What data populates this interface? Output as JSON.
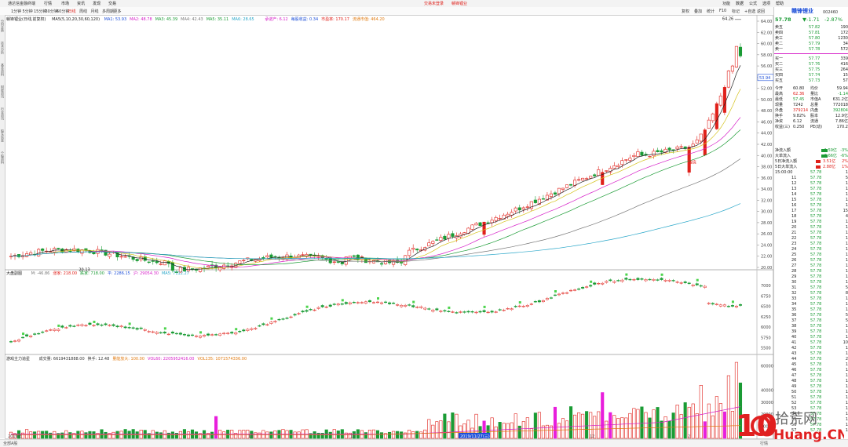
{
  "topbar": {
    "app_title": "通达信金融终端",
    "menus": [
      "行情",
      "市场",
      "资讯",
      "发现",
      "交易"
    ],
    "center_links": [
      "交易未登录",
      "赣锋锂业"
    ],
    "right_menus": [
      "功能",
      "数据",
      "公式",
      "选项",
      "帮助"
    ]
  },
  "toolbar": {
    "periods": [
      "1分钟",
      "5分钟",
      "15分钟",
      "30分钟",
      "60分钟",
      "日线",
      "周线",
      "月线",
      "多周期",
      "更多"
    ],
    "selected_period": "日线",
    "right_buttons": [
      "复权",
      "叠加",
      "统计",
      "F10",
      "标记",
      "+自选",
      "返回"
    ]
  },
  "left_tabs": [
    "分时走势",
    "技术分析",
    "基本资料",
    "财经资讯",
    "行业资讯",
    "股东信息",
    "个股资料"
  ],
  "main_panel": {
    "stock_label": "赣锋锂业(日线,前复权)",
    "ma_label": "MA5(5,10,20,30,60,120)",
    "ma_values": [
      {
        "text": "MA1: 53.93",
        "color": "#1d4fd8"
      },
      {
        "text": "MA2: 48.78",
        "color": "#d61ec8"
      },
      {
        "text": "MA3: 45.39",
        "color": "#1a9b34"
      },
      {
        "text": "MA4: 42.43",
        "color": "#777777"
      },
      {
        "text": "MA5: 35.11",
        "color": "#1a9b34"
      },
      {
        "text": "MA6: 28.65",
        "color": "#2aa7c9"
      }
    ],
    "extra_info": [
      {
        "text": "承诺产: 6.12",
        "color": "#d61ec8"
      },
      {
        "text": "每股收益: 0.34",
        "color": "#1d4fd8"
      },
      {
        "text": "市盈率: 170.17",
        "color": "#e0201a"
      },
      {
        "text": "流通市值: 464.20",
        "color": "#e07a10"
      }
    ],
    "price_axis": [
      "64.00",
      "62.00",
      "60.00",
      "58.00",
      "56.00",
      "54.00",
      "52.00",
      "50.00",
      "48.00",
      "46.00",
      "44.00",
      "42.00",
      "40.00",
      "38.00",
      "36.00",
      "34.00",
      "32.00",
      "30.00",
      "28.00",
      "26.00",
      "24.00",
      "22.00",
      "20.00"
    ],
    "high_label": "64.26",
    "low_label": "20.13",
    "current_price_tag": "53.94",
    "signal_label": "钱烧"
  },
  "middle_panel": {
    "title": "大盘副图",
    "values": [
      {
        "text": "M: -46.86",
        "color": "#777777"
      },
      {
        "text": "涨家: 218.00",
        "color": "#e0201a"
      },
      {
        "text": "跌家: 718.00",
        "color": "#1a9b34"
      },
      {
        "text": "平: 2286.15",
        "color": "#1d4fd8"
      },
      {
        "text": "沪: 29054.30",
        "color": "#d61ec8"
      },
      {
        "text": "MA5: 7112.27",
        "color": "#2aa7c9"
      }
    ],
    "axis": [
      "7000",
      "6750",
      "6500",
      "6250",
      "6000",
      "5750",
      "5500"
    ]
  },
  "volume_panel": {
    "title": "游戏主力追星",
    "values": [
      {
        "text": "成交量: 6619431888.00",
        "color": "#333333"
      },
      {
        "text": "换手: 12.48",
        "color": "#333333"
      },
      {
        "text": "量能放大: 100.00",
        "color": "#e07a10"
      },
      {
        "text": "VOL60: 2205952416.00",
        "color": "#d61ec8"
      },
      {
        "text": "VOL135: 1071574336.00",
        "color": "#e07a10"
      }
    ],
    "axis": [
      "60000",
      "40000",
      "30000",
      "20000",
      "10000"
    ]
  },
  "date_axis": [
    "2019年",
    "10",
    "11",
    "2019/11/27(三)",
    "12",
    "2"
  ],
  "right_panel": {
    "stock_name": "赣锋锂业",
    "stock_code": "002460",
    "price": "57.78",
    "change": "▼-1.71",
    "change_pct": "-2.87%",
    "asks": [
      {
        "label": "卖五",
        "price": "57.82",
        "vol": "190"
      },
      {
        "label": "卖四",
        "price": "57.81",
        "vol": "172"
      },
      {
        "label": "卖三",
        "price": "57.80",
        "vol": "1230"
      },
      {
        "label": "卖二",
        "price": "57.79",
        "vol": "34"
      },
      {
        "label": "卖一",
        "price": "57.78",
        "vol": "572"
      }
    ],
    "bids": [
      {
        "label": "买一",
        "price": "57.77",
        "vol": "339"
      },
      {
        "label": "买二",
        "price": "57.76",
        "vol": "416"
      },
      {
        "label": "买三",
        "price": "57.75",
        "vol": "264"
      },
      {
        "label": "买四",
        "price": "57.74",
        "vol": "15"
      },
      {
        "label": "买五",
        "price": "57.73",
        "vol": "57"
      }
    ],
    "stats": [
      {
        "l1": "今开",
        "v1": "60.80",
        "l2": "均价",
        "v2": "59.94"
      },
      {
        "l1": "最高",
        "v1": "62.36",
        "l2": "量比",
        "v2": "-1.14"
      },
      {
        "l1": "最低",
        "v1": "57.45",
        "l2": "市值A",
        "v2": "631.2亿"
      },
      {
        "l1": "现量",
        "v1": "7242",
        "l2": "总量",
        "v2": "772018"
      },
      {
        "l1": "外盘",
        "v1": "379214",
        "l2": "内盘",
        "v2": "392804"
      },
      {
        "l1": "换手",
        "v1": "9.82%",
        "l2": "股本",
        "v2": "12.9亿"
      },
      {
        "l1": "净资",
        "v1": "6.12",
        "l2": "流通",
        "v2": "7.86亿"
      },
      {
        "l1": "收益(三)",
        "v1": "0.250",
        "l2": "PE(动)",
        "v2": "170.2"
      }
    ],
    "flows": [
      {
        "label": "净流入额",
        "value": "-1.59亿",
        "pct": "-3%"
      },
      {
        "label": "大单流入",
        "value": "-2.66亿",
        "pct": "-6%"
      },
      {
        "label": "5日净流入额",
        "value": "3.51亿",
        "pct": "2%"
      },
      {
        "label": "5日大单流入",
        "value": "2.88亿",
        "pct": "1%"
      }
    ],
    "ticks_header": "15:00:00",
    "ticks": [
      {
        "t": "11",
        "p": "57.78",
        "v": "5"
      },
      {
        "t": "12",
        "p": "57.78",
        "v": "1"
      },
      {
        "t": "13",
        "p": "57.78",
        "v": "1"
      },
      {
        "t": "14",
        "p": "57.78",
        "v": "1"
      },
      {
        "t": "15",
        "p": "57.78",
        "v": "1"
      },
      {
        "t": "16",
        "p": "57.78",
        "v": "1"
      },
      {
        "t": "17",
        "p": "57.78",
        "v": "15"
      },
      {
        "t": "18",
        "p": "57.78",
        "v": "4"
      },
      {
        "t": "19",
        "p": "57.78",
        "v": "1"
      },
      {
        "t": "20",
        "p": "57.78",
        "v": "1"
      },
      {
        "t": "21",
        "p": "57.78",
        "v": "1"
      },
      {
        "t": "22",
        "p": "57.78",
        "v": "1"
      },
      {
        "t": "23",
        "p": "57.78",
        "v": "1"
      },
      {
        "t": "24",
        "p": "57.78",
        "v": "1"
      },
      {
        "t": "25",
        "p": "57.78",
        "v": "1"
      },
      {
        "t": "26",
        "p": "57.78",
        "v": "1"
      },
      {
        "t": "27",
        "p": "57.78",
        "v": "1"
      },
      {
        "t": "28",
        "p": "57.78",
        "v": "1"
      },
      {
        "t": "29",
        "p": "57.78",
        "v": "1"
      },
      {
        "t": "30",
        "p": "57.78",
        "v": "1"
      },
      {
        "t": "31",
        "p": "57.78",
        "v": "5"
      },
      {
        "t": "32",
        "p": "57.78",
        "v": "8"
      },
      {
        "t": "33",
        "p": "57.78",
        "v": "1"
      },
      {
        "t": "34",
        "p": "57.78",
        "v": "1"
      },
      {
        "t": "35",
        "p": "57.78",
        "v": "1"
      },
      {
        "t": "36",
        "p": "57.78",
        "v": "5"
      },
      {
        "t": "37",
        "p": "57.78",
        "v": "5"
      },
      {
        "t": "38",
        "p": "57.78",
        "v": "1"
      },
      {
        "t": "39",
        "p": "57.78",
        "v": "1"
      },
      {
        "t": "40",
        "p": "57.78",
        "v": "1"
      },
      {
        "t": "41",
        "p": "57.78",
        "v": "10"
      },
      {
        "t": "42",
        "p": "57.78",
        "v": "1"
      },
      {
        "t": "43",
        "p": "57.78",
        "v": "1"
      },
      {
        "t": "44",
        "p": "57.78",
        "v": "2"
      },
      {
        "t": "45",
        "p": "57.78",
        "v": "1"
      },
      {
        "t": "46",
        "p": "57.78",
        "v": "1"
      },
      {
        "t": "47",
        "p": "57.78",
        "v": "1"
      },
      {
        "t": "48",
        "p": "57.78",
        "v": "1"
      },
      {
        "t": "49",
        "p": "57.78",
        "v": "1"
      },
      {
        "t": "50",
        "p": "57.78",
        "v": "1"
      },
      {
        "t": "51",
        "p": "57.78",
        "v": "1"
      },
      {
        "t": "52",
        "p": "57.78",
        "v": "1"
      },
      {
        "t": "53",
        "p": "57.78",
        "v": "1"
      },
      {
        "t": "54",
        "p": "57.78",
        "v": "1"
      },
      {
        "t": "55",
        "p": "57.78",
        "v": "1"
      },
      {
        "t": "56",
        "p": "57.78",
        "v": "1"
      },
      {
        "t": "57",
        "p": "57.78",
        "v": "1"
      }
    ]
  },
  "bottombar": {
    "left": "全部A股",
    "right": "行情"
  },
  "watermark": {
    "num": "10",
    "cn": "拾荒网",
    "en": "Huang.CN"
  },
  "colors": {
    "up": "#e0201a",
    "down": "#1a9b34",
    "accent": "#1d4fd8",
    "highlight": "#e81edc"
  }
}
